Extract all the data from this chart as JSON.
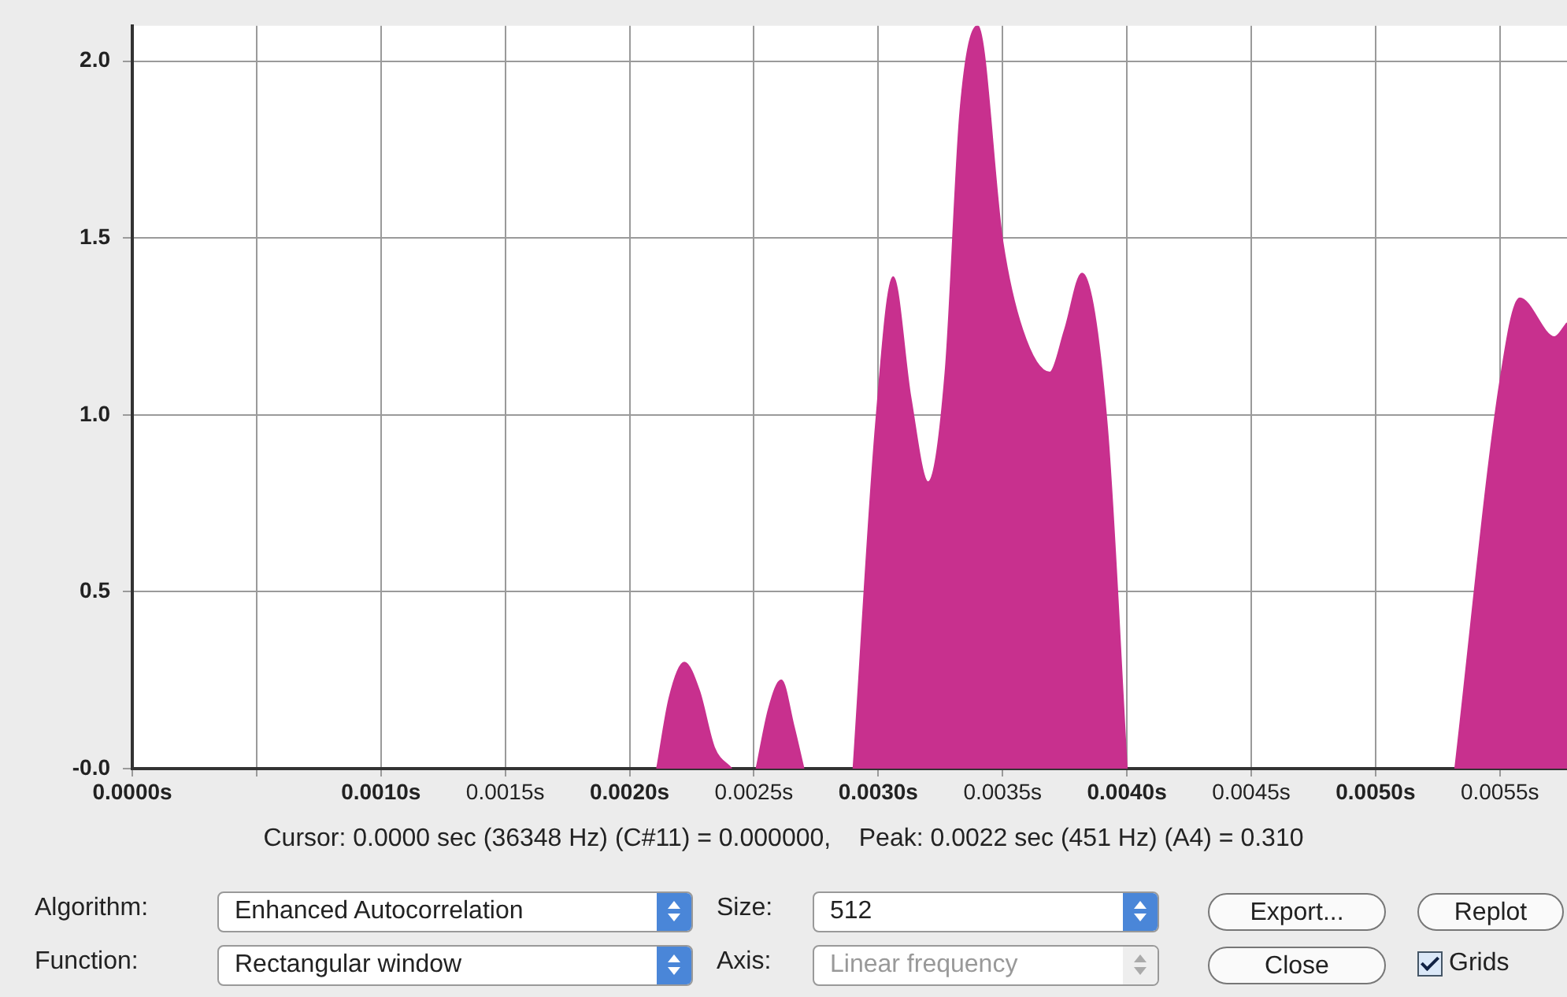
{
  "chart_data": {
    "type": "area",
    "x": [
      0.00211,
      0.00216,
      0.00222,
      0.00228,
      0.00234,
      0.00241,
      0.00246,
      0.00251,
      0.00256,
      0.00261,
      0.00266,
      0.0027,
      0.0028,
      0.0029,
      0.00299,
      0.00306,
      0.00313,
      0.0032,
      0.00327,
      0.00333,
      0.0034,
      0.0035,
      0.00358,
      0.00369,
      0.00375,
      0.00382,
      0.00392,
      0.004,
      0.0046,
      0.00532,
      0.0055,
      0.00558,
      0.00572,
      0.00577
    ],
    "series": [
      {
        "color": "#c8308e",
        "values": [
          0,
          0.2,
          0.3,
          0.22,
          0.06,
          0,
          null,
          0,
          0.17,
          0.25,
          0.12,
          0,
          null,
          0,
          0.97,
          1.39,
          1.05,
          0.81,
          1.12,
          1.86,
          2.1,
          1.49,
          1.24,
          1.12,
          1.24,
          1.4,
          0.97,
          0,
          null,
          0,
          1.09,
          1.33,
          1.22,
          1.26
        ]
      }
    ],
    "xlim": [
      0,
      0.00577
    ],
    "xticks": [
      {
        "value": 0,
        "label": "0.0000s"
      },
      {
        "value": 0.0005,
        "label": null
      },
      {
        "value": 0.001,
        "label": "0.0010s"
      },
      {
        "value": 0.0015,
        "label": "0.0015s"
      },
      {
        "value": 0.002,
        "label": "0.0020s"
      },
      {
        "value": 0.0025,
        "label": "0.0025s"
      },
      {
        "value": 0.003,
        "label": "0.0030s"
      },
      {
        "value": 0.0035,
        "label": "0.0035s"
      },
      {
        "value": 0.004,
        "label": "0.0040s"
      },
      {
        "value": 0.0045,
        "label": "0.0045s"
      },
      {
        "value": 0.005,
        "label": "0.0050s"
      },
      {
        "value": 0.0055,
        "label": "0.0055s"
      }
    ],
    "ylim": [
      0,
      2.1
    ],
    "yticks": [
      {
        "value": 0,
        "label": "-0.0"
      },
      {
        "value": 0.5,
        "label": "0.5"
      },
      {
        "value": 1,
        "label": "1.0"
      },
      {
        "value": 1.5,
        "label": "1.5"
      },
      {
        "value": 2,
        "label": "2.0"
      }
    ],
    "grid": true,
    "annotations": [
      "Cursor: 0.0000 sec (36348 Hz) (C#11) = 0.000000,    Peak: 0.0022 sec (451 Hz) (A4) = 0.310",
      "Algorithm:",
      "Enhanced Autocorrelation",
      "Size:",
      "512",
      "Export...",
      "Replot",
      "Function:",
      "Rectangular window",
      "Axis:",
      "Linear frequency",
      "Close",
      "Grids"
    ]
  }
}
